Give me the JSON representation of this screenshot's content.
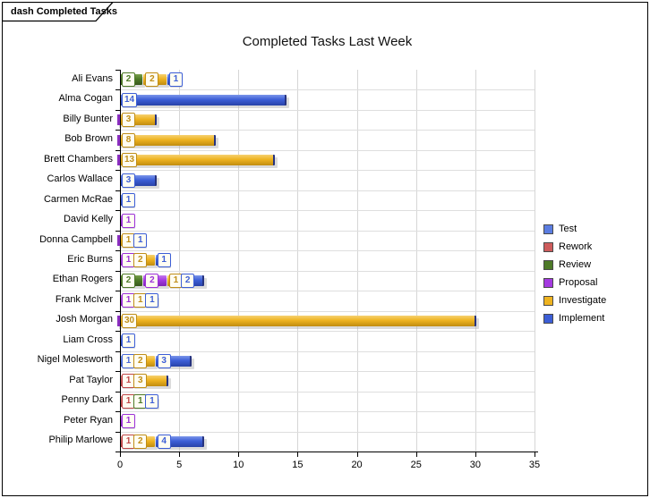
{
  "window": {
    "tab_label": "dash Completed Tasks"
  },
  "chart_data": {
    "type": "bar",
    "orientation": "horizontal",
    "stacked": true,
    "title": "Completed Tasks Last Week",
    "xlabel": "",
    "ylabel": "",
    "xlim": [
      0,
      35
    ],
    "x_ticks": [
      0,
      5,
      10,
      15,
      20,
      25,
      30,
      35
    ],
    "grid": true,
    "legend_position": "right",
    "series": [
      {
        "name": "Test",
        "fill": "#5b7de1",
        "light": "#8fa8ef",
        "dark": "#3a56b8",
        "text": "#4a68d8"
      },
      {
        "name": "Rework",
        "fill": "#cd5c5c",
        "light": "#e09090",
        "dark": "#a83e3e",
        "text": "#c04848"
      },
      {
        "name": "Review",
        "fill": "#4e7a28",
        "light": "#79a04c",
        "dark": "#39591d",
        "text": "#4e7a28"
      },
      {
        "name": "Proposal",
        "fill": "#a43ae0",
        "light": "#c47aec",
        "dark": "#7f25b5",
        "text": "#9b30d8"
      },
      {
        "name": "Investigate",
        "fill": "#eeb320",
        "light": "#f6d170",
        "dark": "#c08c10",
        "text": "#bf8e18"
      },
      {
        "name": "Implement",
        "fill": "#3c5ed6",
        "light": "#7b95ea",
        "dark": "#2843a8",
        "text": "#3c5ed6"
      }
    ],
    "categories": [
      "Ali Evans",
      "Alma Cogan",
      "Billy Bunter",
      "Bob Brown",
      "Brett Chambers",
      "Carlos Wallace",
      "Carmen McRae",
      "David Kelly",
      "Donna Campbell",
      "Eric Burns",
      "Ethan Rogers",
      "Frank McIver",
      "Josh Morgan",
      "Liam Cross",
      "Nigel Molesworth",
      "Pat Taylor",
      "Penny Dark",
      "Peter Ryan",
      "Philip Marlowe"
    ],
    "rows": [
      {
        "name": "Ali Evans",
        "segments": [
          {
            "series": "Review",
            "value": 2
          },
          {
            "series": "Investigate",
            "value": 2
          },
          {
            "series": "Implement",
            "value": 1
          }
        ]
      },
      {
        "name": "Alma Cogan",
        "segments": [
          {
            "series": "Implement",
            "value": 14
          }
        ]
      },
      {
        "name": "Billy Bunter",
        "segments": [
          {
            "series": "Investigate",
            "value": 3
          }
        ]
      },
      {
        "name": "Bob Brown",
        "segments": [
          {
            "series": "Investigate",
            "value": 8
          }
        ]
      },
      {
        "name": "Brett Chambers",
        "segments": [
          {
            "series": "Investigate",
            "value": 13
          }
        ]
      },
      {
        "name": "Carlos Wallace",
        "segments": [
          {
            "series": "Implement",
            "value": 3
          }
        ]
      },
      {
        "name": "Carmen McRae",
        "segments": [
          {
            "series": "Implement",
            "value": 1
          }
        ]
      },
      {
        "name": "David Kelly",
        "segments": [
          {
            "series": "Proposal",
            "value": 1
          }
        ]
      },
      {
        "name": "Donna Campbell",
        "segments": [
          {
            "series": "Investigate",
            "value": 1
          },
          {
            "series": "Implement",
            "value": 1
          }
        ]
      },
      {
        "name": "Eric Burns",
        "segments": [
          {
            "series": "Proposal",
            "value": 1
          },
          {
            "series": "Investigate",
            "value": 2
          },
          {
            "series": "Implement",
            "value": 1
          }
        ]
      },
      {
        "name": "Ethan Rogers",
        "segments": [
          {
            "series": "Review",
            "value": 2
          },
          {
            "series": "Proposal",
            "value": 2
          },
          {
            "series": "Investigate",
            "value": 1
          },
          {
            "series": "Implement",
            "value": 2
          }
        ]
      },
      {
        "name": "Frank McIver",
        "segments": [
          {
            "series": "Proposal",
            "value": 1
          },
          {
            "series": "Investigate",
            "value": 1
          },
          {
            "series": "Implement",
            "value": 1
          }
        ]
      },
      {
        "name": "Josh Morgan",
        "segments": [
          {
            "series": "Investigate",
            "value": 30
          }
        ]
      },
      {
        "name": "Liam Cross",
        "segments": [
          {
            "series": "Implement",
            "value": 1
          }
        ]
      },
      {
        "name": "Nigel Molesworth",
        "segments": [
          {
            "series": "Test",
            "value": 1
          },
          {
            "series": "Investigate",
            "value": 2
          },
          {
            "series": "Implement",
            "value": 3
          }
        ]
      },
      {
        "name": "Pat Taylor",
        "segments": [
          {
            "series": "Rework",
            "value": 1
          },
          {
            "series": "Investigate",
            "value": 3
          }
        ]
      },
      {
        "name": "Penny Dark",
        "segments": [
          {
            "series": "Rework",
            "value": 1
          },
          {
            "series": "Review",
            "value": 1
          },
          {
            "series": "Implement",
            "value": 1
          }
        ]
      },
      {
        "name": "Peter Ryan",
        "segments": [
          {
            "series": "Proposal",
            "value": 1
          }
        ]
      },
      {
        "name": "Philip Marlowe",
        "segments": [
          {
            "series": "Rework",
            "value": 1
          },
          {
            "series": "Investigate",
            "value": 2
          },
          {
            "series": "Implement",
            "value": 4
          }
        ]
      }
    ]
  },
  "legend": {
    "items": [
      {
        "label": "Test"
      },
      {
        "label": "Rework"
      },
      {
        "label": "Review"
      },
      {
        "label": "Proposal"
      },
      {
        "label": "Investigate"
      },
      {
        "label": "Implement"
      }
    ]
  }
}
